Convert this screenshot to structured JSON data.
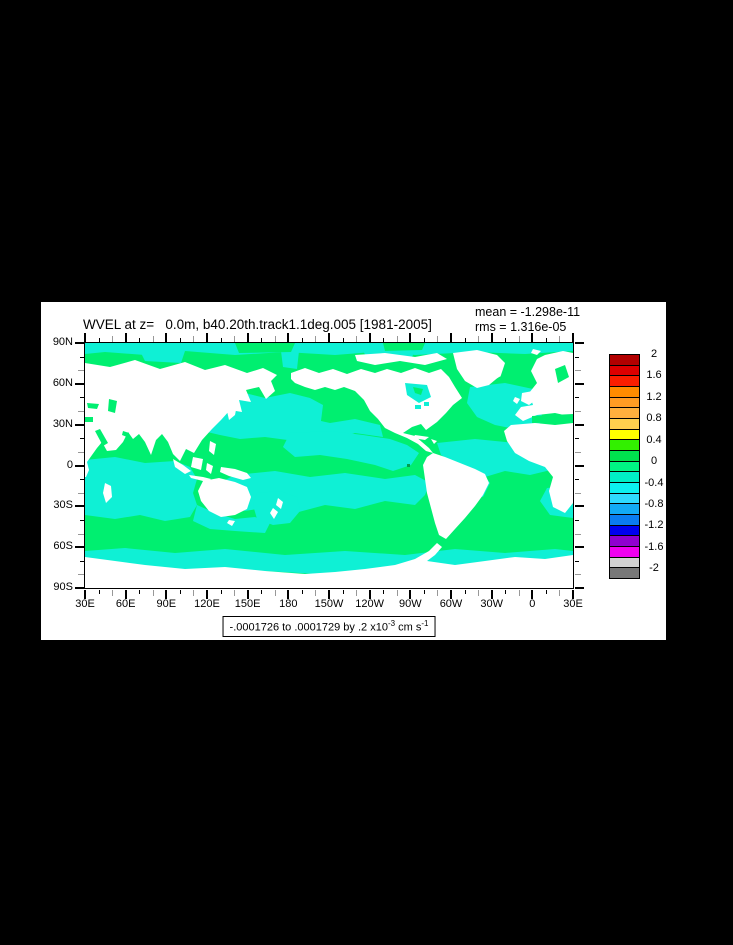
{
  "colors": {
    "background": "#000000",
    "panel": "#ffffff",
    "ocean_green": "#00ef70",
    "ocean_cyan": "#0ff0d5",
    "land": "#ffffff",
    "frame": "#000000",
    "minor_tick_gray": "#989898",
    "speck": "#00a050"
  },
  "header": {
    "title": "WVEL at z=   0.0m, b40.20th.track1.1deg.005 [1981-2005]",
    "mean": "mean = -1.298e-11",
    "rms": "rms = 1.316e-05"
  },
  "axes": {
    "lat_labels": [
      "90N",
      "60N",
      "30N",
      "0",
      "30S",
      "60S",
      "90S"
    ],
    "lon_labels": [
      "30E",
      "60E",
      "90E",
      "120E",
      "150E",
      "180",
      "150W",
      "120W",
      "90W",
      "60W",
      "30W",
      "0",
      "30E"
    ]
  },
  "colorbar": {
    "labels": [
      "2",
      "1.6",
      "1.2",
      "0.8",
      "0.4",
      "0",
      "-0.4",
      "-0.8",
      "-1.2",
      "-1.6",
      "-2"
    ],
    "colors": [
      "#b20000",
      "#dd0000",
      "#fa1e00",
      "#ff8c00",
      "#ff9c24",
      "#ffb03e",
      "#ffd04e",
      "#ffff00",
      "#32f000",
      "#00e24e",
      "#00f584",
      "#00eec6",
      "#0cf0f0",
      "#2edaff",
      "#12aaf5",
      "#0a7cf0",
      "#0000f0",
      "#9000d0",
      "#f000f0",
      "#d2d2d2",
      "#787878"
    ]
  },
  "range_box": {
    "prefix": "-.0001726 to .0001729 by .2 x10",
    "sup1": "-3",
    "mid": " cm s",
    "sup2": "-1"
  },
  "chart_data": {
    "type": "heatmap",
    "title": "WVEL at z=   0.0m, b40.20th.track1.1deg.005 [1981-2005]",
    "stats": {
      "mean": "-1.298e-11",
      "rms": "1.316e-05"
    },
    "data_range_label": "-.0001726 to .0001729 by .2 x10^-3 cm s^-1",
    "colorbar_tick_values": [
      2,
      1.6,
      1.2,
      0.8,
      0.4,
      0,
      -0.4,
      -0.8,
      -1.2,
      -1.6,
      -2
    ],
    "colorbar_cells": 21,
    "contour_interval": 0.2,
    "units": "x10^-3 cm s^-1",
    "x_axis": {
      "label": "longitude",
      "ticks": [
        "30E",
        "60E",
        "90E",
        "120E",
        "150E",
        "180",
        "150W",
        "120W",
        "90W",
        "60W",
        "30W",
        "0",
        "30E"
      ],
      "range_deg": 360
    },
    "y_axis": {
      "label": "latitude",
      "ticks": [
        "90N",
        "60N",
        "30N",
        "0",
        "30S",
        "60S",
        "90S"
      ],
      "range_deg": [
        90,
        -90
      ]
    },
    "field_summary": "Global surface vertical velocity map (Pacific-centered, 30E at left edge). Ocean values are near zero: weak positive patches (0 to +0.2e-3, green) and weak negative patches (-0.2e-3 to 0, cyan). Land and Antarctica are masked white."
  }
}
